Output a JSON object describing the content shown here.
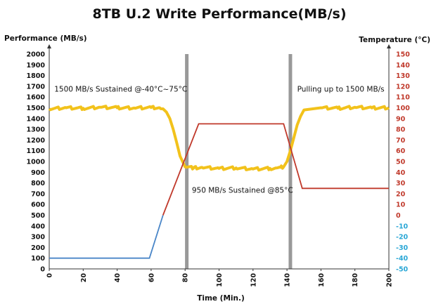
{
  "chart_data": {
    "type": "line",
    "title": "8TB U.2 Write Performance(MB/s)",
    "xlabel": "Time (Min.)",
    "ylabel_left": "Performance (MB/s)",
    "ylabel_right": "Temperature (°C)",
    "x_range": [
      0,
      200
    ],
    "x_ticks": [
      0,
      20,
      40,
      60,
      80,
      100,
      120,
      140,
      160,
      180,
      200
    ],
    "y_left_range": [
      0,
      2000
    ],
    "y_left_ticks": [
      0,
      100,
      200,
      300,
      400,
      500,
      600,
      700,
      800,
      900,
      1000,
      1100,
      1200,
      1300,
      1400,
      1500,
      1600,
      1700,
      1800,
      1900,
      2000
    ],
    "y_right_range": [
      -50,
      150
    ],
    "y_right_ticks": [
      -50,
      -40,
      -30,
      -20,
      -10,
      0,
      10,
      20,
      30,
      40,
      50,
      60,
      70,
      80,
      90,
      100,
      110,
      120,
      130,
      140,
      150
    ],
    "grid": false,
    "vertical_markers": [
      81,
      142
    ],
    "series": [
      {
        "axis": "left",
        "color": "#f2c21b",
        "x": [
          0,
          10,
          20,
          30,
          40,
          50,
          60,
          65,
          67,
          69,
          71,
          73,
          75,
          77,
          80,
          85,
          90,
          100,
          110,
          120,
          130,
          134,
          136,
          138,
          140,
          142,
          144,
          146,
          148,
          150,
          160,
          170,
          180,
          190,
          200
        ],
        "values": [
          1490,
          1500,
          1495,
          1505,
          1500,
          1498,
          1502,
          1500,
          1490,
          1460,
          1400,
          1300,
          1180,
          1050,
          950,
          940,
          945,
          935,
          940,
          930,
          935,
          940,
          945,
          950,
          1000,
          1100,
          1220,
          1340,
          1420,
          1480,
          1500,
          1495,
          1505,
          1498,
          1500
        ]
      },
      {
        "axis": "right",
        "color_below_zero": "#4a86c8",
        "color_above_zero": "#c0392b",
        "x": [
          0,
          59,
          67,
          88,
          138,
          149,
          200
        ],
        "values": [
          -40,
          -40,
          0,
          85,
          85,
          25,
          25
        ]
      }
    ],
    "annotations": [
      {
        "text": "1500 MB/s Sustained @-40°C~75°C",
        "x": 3,
        "y": 1650
      },
      {
        "text": "950 MB/s Sustained @85°C",
        "x": 84,
        "y": 710
      },
      {
        "text": "Pulling up to 1500 MB/s",
        "x": 146,
        "y": 1650
      }
    ],
    "colors": {
      "left_axis_ticks": "#111111",
      "right_axis_positive": "#c0392b",
      "right_axis_negative": "#2aa7d6",
      "marker": "#999999",
      "axis_line": "#333333"
    }
  }
}
